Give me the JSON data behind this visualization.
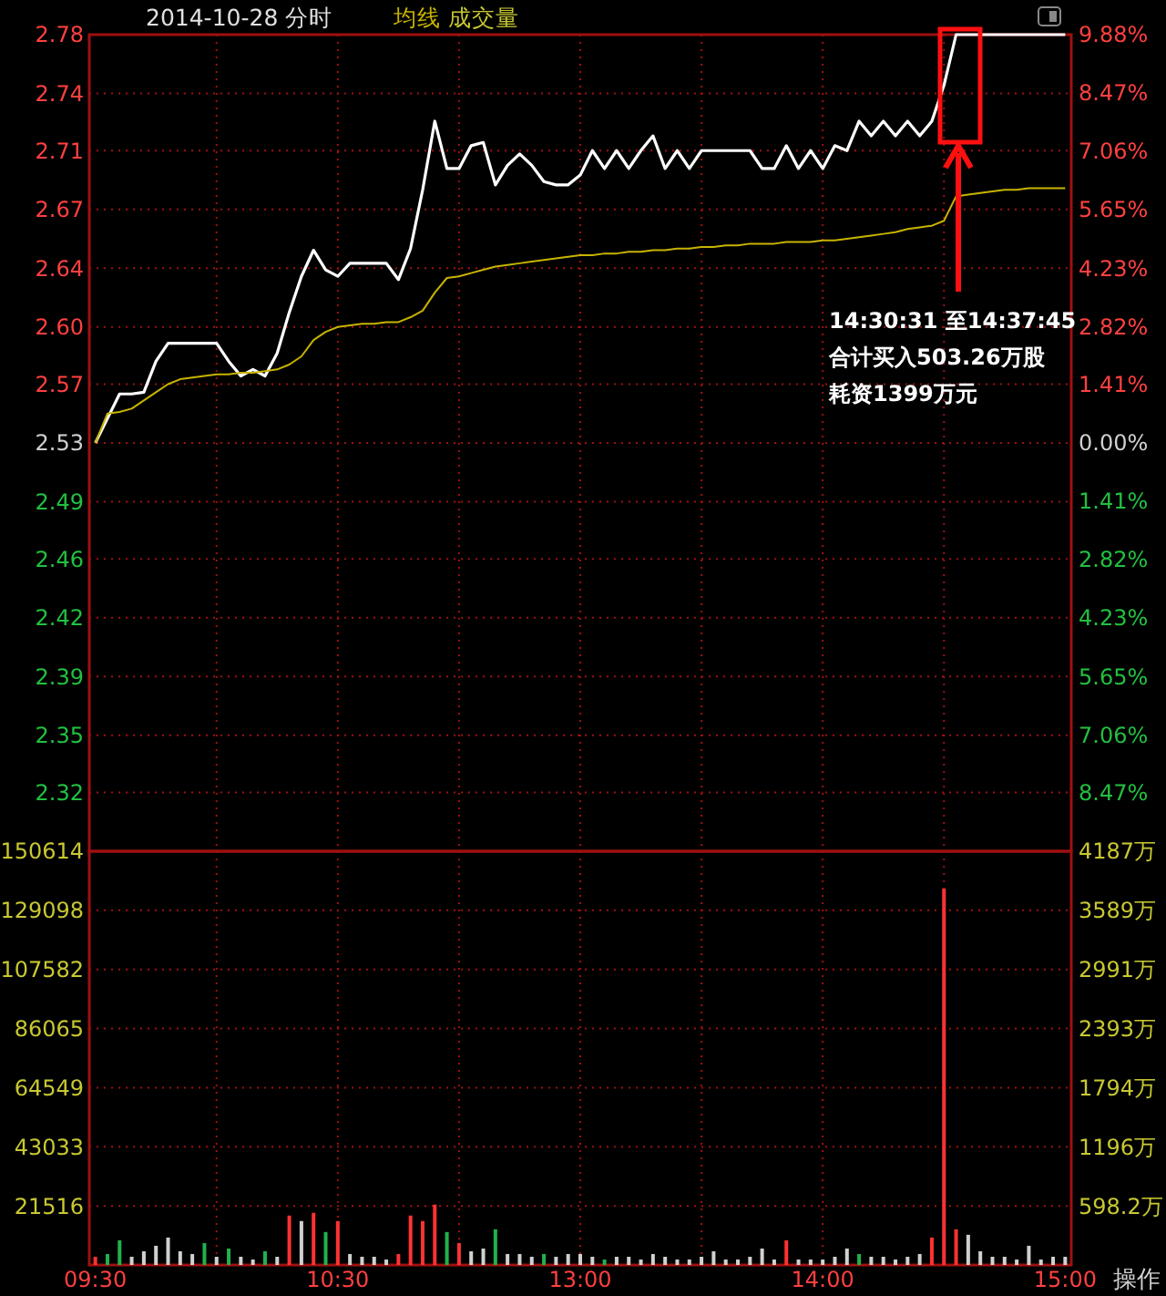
{
  "chart_data": [
    {
      "type": "line",
      "title": "2014-10-28 分时",
      "legend": "top left",
      "grid": true,
      "tick_labels": "y",
      "ylim": [
        2.28,
        2.78
      ],
      "y2lim": [
        -9.88,
        9.88
      ],
      "categories": [
        null,
        null,
        null,
        null,
        null,
        null,
        null,
        null,
        null,
        null,
        null,
        null,
        null,
        null,
        null,
        null,
        null,
        null,
        null,
        null,
        null,
        null,
        null,
        null,
        null,
        null,
        null,
        null,
        null,
        null,
        null,
        null,
        null,
        null,
        null,
        null,
        null,
        null,
        null,
        null,
        null,
        null,
        null,
        null,
        null,
        null,
        null,
        null,
        null,
        null,
        null,
        null,
        null,
        null,
        null,
        null,
        null,
        null,
        null,
        null,
        null,
        null,
        null,
        null,
        null,
        null,
        null,
        null,
        null,
        null,
        null,
        null,
        null,
        null,
        null,
        null,
        null,
        null,
        null,
        null,
        null
      ],
      "yticks": [
        2.78,
        {
          "value": 2.744,
          "label": "2.74"
        },
        {
          "value": 2.709,
          "label": "2.71"
        },
        {
          "value": 2.673,
          "label": "2.67"
        },
        {
          "value": 2.637,
          "label": "2.64"
        },
        {
          "value": 2.601,
          "label": "2.60"
        },
        {
          "value": 2.566,
          "label": "2.57"
        },
        2.53,
        {
          "value": 2.494,
          "label": "2.49"
        },
        {
          "value": 2.459,
          "label": "2.46"
        },
        {
          "value": 2.423,
          "label": "2.42"
        },
        {
          "value": 2.387,
          "label": "2.39"
        },
        {
          "value": 2.351,
          "label": "2.35"
        },
        {
          "value": 2.316,
          "label": "2.32"
        }
      ],
      "y2ticks": [
        {
          "value": 9.88,
          "label": "9.88%"
        },
        {
          "value": 8.47,
          "label": "8.47%"
        },
        {
          "value": 7.06,
          "label": "7.06%"
        },
        {
          "value": 5.65,
          "label": "5.65%"
        },
        {
          "value": 4.23,
          "label": "4.23%"
        },
        {
          "value": 2.82,
          "label": "2.82%"
        },
        {
          "value": 1.41,
          "label": "1.41%"
        },
        {
          "value": 0,
          "label": "0.00%"
        },
        {
          "value": -1.41,
          "label": "1.41%"
        },
        {
          "value": -2.82,
          "label": "2.82%"
        },
        {
          "value": -4.23,
          "label": "4.23%"
        },
        {
          "value": -5.65,
          "label": "5.65%"
        },
        {
          "value": -7.06,
          "label": "7.06%"
        },
        {
          "value": -8.47,
          "label": "8.47%"
        }
      ],
      "subtitle": "成交量",
      "annotations": [
        "14:30:31 至14:37:45",
        "合计买入503.26万股",
        "耗资1399万元"
      ],
      "series": [
        {
          "color": "#ffffff",
          "values": [
            2.53,
            2.545,
            2.56,
            2.56,
            2.561,
            2.58,
            2.591,
            2.591,
            2.591,
            2.591,
            2.591,
            2.58,
            2.571,
            2.575,
            2.571,
            2.585,
            2.61,
            2.632,
            2.648,
            2.636,
            2.632,
            2.64,
            2.64,
            2.64,
            2.64,
            2.63,
            2.649,
            2.685,
            2.727,
            2.698,
            2.698,
            2.712,
            2.714,
            2.688,
            2.7,
            2.707,
            2.7,
            2.69,
            2.688,
            2.688,
            2.694,
            2.709,
            2.698,
            2.709,
            2.698,
            2.709,
            2.718,
            2.698,
            2.709,
            2.698,
            2.709,
            2.709,
            2.709,
            2.709,
            2.709,
            2.698,
            2.698,
            2.712,
            2.698,
            2.709,
            2.698,
            2.712,
            2.709,
            2.727,
            2.718,
            2.727,
            2.718,
            2.727,
            2.718,
            2.727,
            2.749,
            2.78,
            2.78,
            2.78,
            2.78,
            2.78,
            2.78,
            2.78,
            2.78,
            2.78,
            2.78
          ]
        },
        {
          "name": "均线",
          "color": "#c8b400",
          "values": [
            2.53,
            2.548,
            2.549,
            2.551,
            2.556,
            2.561,
            2.566,
            2.569,
            2.57,
            2.571,
            2.572,
            2.572,
            2.573,
            2.573,
            2.574,
            2.575,
            2.578,
            2.583,
            2.593,
            2.598,
            2.601,
            2.602,
            2.603,
            2.603,
            2.604,
            2.604,
            2.607,
            2.611,
            2.622,
            2.631,
            2.632,
            2.634,
            2.636,
            2.638,
            2.639,
            2.64,
            2.641,
            2.642,
            2.643,
            2.644,
            2.645,
            2.645,
            2.646,
            2.646,
            2.647,
            2.647,
            2.648,
            2.648,
            2.649,
            2.649,
            2.65,
            2.65,
            2.651,
            2.651,
            2.652,
            2.652,
            2.652,
            2.653,
            2.653,
            2.653,
            2.654,
            2.654,
            2.655,
            2.656,
            2.657,
            2.658,
            2.659,
            2.661,
            2.662,
            2.663,
            2.666,
            2.681,
            2.682,
            2.683,
            2.684,
            2.685,
            2.685,
            2.686,
            2.686,
            2.686,
            2.686
          ]
        }
      ]
    },
    {
      "type": "bar",
      "grid": true,
      "ylim": [
        0,
        150614
      ],
      "y2lim": [
        0,
        4187
      ],
      "categories": [
        "09:30",
        null,
        null,
        null,
        null,
        null,
        null,
        null,
        null,
        null,
        null,
        null,
        null,
        null,
        null,
        null,
        null,
        null,
        null,
        null,
        "10:30",
        null,
        null,
        null,
        null,
        null,
        null,
        null,
        null,
        null,
        null,
        null,
        null,
        null,
        null,
        null,
        null,
        null,
        null,
        null,
        "13:00",
        null,
        null,
        null,
        null,
        null,
        null,
        null,
        null,
        null,
        null,
        null,
        null,
        null,
        null,
        null,
        null,
        null,
        null,
        null,
        "14:00",
        null,
        null,
        null,
        null,
        null,
        null,
        null,
        null,
        null,
        null,
        null,
        null,
        null,
        null,
        null,
        null,
        null,
        null,
        null,
        "15:00"
      ],
      "yticks": [
        21516,
        43033,
        64549,
        86065,
        107582,
        129098,
        150614
      ],
      "y2ticks": [
        {
          "value": 598.2,
          "label": "598.2万"
        },
        {
          "value": 1196,
          "label": "1196万"
        },
        {
          "value": 1794,
          "label": "1794万"
        },
        {
          "value": 2393,
          "label": "2393万"
        },
        {
          "value": 2991,
          "label": "2991万"
        },
        {
          "value": 3589,
          "label": "3589万"
        },
        {
          "value": 4187,
          "label": "4187万"
        }
      ],
      "annotations": [
        "操作"
      ],
      "values": [
        3000,
        4000,
        9000,
        3000,
        5000,
        7000,
        10000,
        5000,
        4000,
        8000,
        3000,
        6000,
        3000,
        2000,
        5000,
        3000,
        18000,
        16000,
        19000,
        12000,
        16000,
        4000,
        3000,
        3000,
        2000,
        4000,
        18000,
        16000,
        22000,
        12000,
        8000,
        5000,
        6000,
        13000,
        4000,
        4000,
        3000,
        4000,
        3000,
        4000,
        4000,
        3000,
        2000,
        3000,
        3000,
        2000,
        4000,
        3000,
        2000,
        2000,
        3000,
        5000,
        2000,
        2000,
        3000,
        6000,
        2000,
        9000,
        2000,
        2000,
        2000,
        3000,
        6000,
        4000,
        3000,
        3000,
        2000,
        3000,
        4000,
        10000,
        137000,
        13000,
        11000,
        5000,
        3000,
        3000,
        2000,
        7000,
        2000,
        3000,
        3000
      ],
      "colors": [
        "#ff3232",
        "#22b14c",
        "#22b14c",
        "#d0d0d0",
        "#d0d0d0",
        "#d0d0d0",
        "#d0d0d0",
        "#d0d0d0",
        "#d0d0d0",
        "#22b14c",
        "#d0d0d0",
        "#22b14c",
        "#d0d0d0",
        "#d0d0d0",
        "#22b14c",
        "#d0d0d0",
        "#ff3232",
        "#d0d0d0",
        "#ff3232",
        "#22b14c",
        "#ff3232",
        "#d0d0d0",
        "#d0d0d0",
        "#d0d0d0",
        "#d0d0d0",
        "#ff3232",
        "#ff3232",
        "#ff3232",
        "#ff3232",
        "#22b14c",
        "#ff3232",
        "#d0d0d0",
        "#d0d0d0",
        "#22b14c",
        "#d0d0d0",
        "#d0d0d0",
        "#d0d0d0",
        "#22b14c",
        "#d0d0d0",
        "#d0d0d0",
        "#d0d0d0",
        "#d0d0d0",
        "#22b14c",
        "#d0d0d0",
        "#d0d0d0",
        "#d0d0d0",
        "#d0d0d0",
        "#d0d0d0",
        "#d0d0d0",
        "#d0d0d0",
        "#d0d0d0",
        "#d0d0d0",
        "#d0d0d0",
        "#d0d0d0",
        "#d0d0d0",
        "#d0d0d0",
        "#d0d0d0",
        "#ff3232",
        "#d0d0d0",
        "#d0d0d0",
        "#d0d0d0",
        "#d0d0d0",
        "#d0d0d0",
        "#22b14c",
        "#d0d0d0",
        "#d0d0d0",
        "#d0d0d0",
        "#d0d0d0",
        "#d0d0d0",
        "#ff3232",
        "#ff3232",
        "#ff3232",
        "#d0d0d0",
        "#d0d0d0",
        "#d0d0d0",
        "#d0d0d0",
        "#d0d0d0",
        "#d0d0d0",
        "#d0d0d0",
        "#d0d0d0",
        "#d0d0d0"
      ]
    }
  ]
}
